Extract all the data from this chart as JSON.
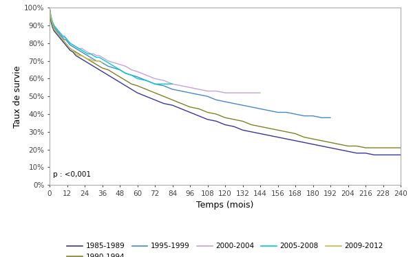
{
  "title": "",
  "xlabel": "Temps (mois)",
  "ylabel": "Taux de survie",
  "xlim": [
    0,
    240
  ],
  "ylim": [
    0,
    1.0
  ],
  "xticks": [
    0,
    12,
    24,
    36,
    48,
    60,
    72,
    84,
    96,
    108,
    120,
    132,
    144,
    156,
    168,
    180,
    192,
    204,
    216,
    228,
    240
  ],
  "yticks": [
    0,
    0.1,
    0.2,
    0.3,
    0.4,
    0.5,
    0.6,
    0.7,
    0.8,
    0.9,
    1.0
  ],
  "ytick_labels": [
    "0%",
    "10%",
    "20%",
    "30%",
    "40%",
    "50%",
    "60%",
    "70%",
    "80%",
    "90%",
    "100%"
  ],
  "pvalue_text": "p : <0,001",
  "series": [
    {
      "label": "1985-1989",
      "color": "#3535a0",
      "x": [
        0,
        1,
        2,
        3,
        4,
        5,
        6,
        7,
        8,
        9,
        10,
        11,
        12,
        14,
        16,
        18,
        20,
        22,
        24,
        26,
        28,
        30,
        32,
        34,
        36,
        40,
        44,
        48,
        52,
        56,
        60,
        66,
        72,
        78,
        84,
        90,
        96,
        102,
        108,
        114,
        120,
        126,
        132,
        138,
        144,
        150,
        156,
        162,
        168,
        174,
        180,
        186,
        192,
        198,
        204,
        210,
        216,
        222,
        228,
        234,
        240
      ],
      "y": [
        1.0,
        0.92,
        0.89,
        0.87,
        0.86,
        0.85,
        0.84,
        0.83,
        0.82,
        0.81,
        0.8,
        0.79,
        0.78,
        0.76,
        0.75,
        0.73,
        0.72,
        0.71,
        0.7,
        0.69,
        0.68,
        0.67,
        0.66,
        0.65,
        0.64,
        0.62,
        0.6,
        0.58,
        0.56,
        0.54,
        0.52,
        0.5,
        0.48,
        0.46,
        0.45,
        0.43,
        0.41,
        0.39,
        0.37,
        0.36,
        0.34,
        0.33,
        0.31,
        0.3,
        0.29,
        0.28,
        0.27,
        0.26,
        0.25,
        0.24,
        0.23,
        0.22,
        0.21,
        0.2,
        0.19,
        0.18,
        0.18,
        0.17,
        0.17,
        0.17,
        0.17
      ]
    },
    {
      "label": "1990-1994",
      "color": "#808020",
      "x": [
        0,
        1,
        2,
        3,
        4,
        5,
        6,
        7,
        8,
        9,
        10,
        11,
        12,
        14,
        16,
        18,
        20,
        22,
        24,
        26,
        28,
        30,
        32,
        34,
        36,
        40,
        44,
        48,
        52,
        56,
        60,
        66,
        72,
        78,
        84,
        90,
        96,
        102,
        108,
        114,
        120,
        126,
        132,
        138,
        144,
        150,
        156,
        162,
        168,
        174,
        180,
        186,
        192,
        198,
        204,
        210,
        216,
        222,
        228,
        234,
        240
      ],
      "y": [
        1.0,
        0.93,
        0.9,
        0.88,
        0.87,
        0.86,
        0.85,
        0.84,
        0.83,
        0.82,
        0.81,
        0.8,
        0.79,
        0.77,
        0.76,
        0.75,
        0.74,
        0.73,
        0.72,
        0.71,
        0.7,
        0.69,
        0.68,
        0.67,
        0.66,
        0.65,
        0.63,
        0.61,
        0.59,
        0.57,
        0.56,
        0.54,
        0.52,
        0.5,
        0.48,
        0.46,
        0.44,
        0.43,
        0.41,
        0.4,
        0.38,
        0.37,
        0.36,
        0.34,
        0.33,
        0.32,
        0.31,
        0.3,
        0.29,
        0.27,
        0.26,
        0.25,
        0.24,
        0.23,
        0.22,
        0.22,
        0.21,
        0.21,
        0.21,
        0.21,
        0.21
      ]
    },
    {
      "label": "1995-1999",
      "color": "#4488cc",
      "x": [
        0,
        1,
        2,
        3,
        4,
        5,
        6,
        7,
        8,
        9,
        10,
        11,
        12,
        14,
        16,
        18,
        20,
        22,
        24,
        26,
        28,
        30,
        32,
        34,
        36,
        40,
        44,
        48,
        52,
        56,
        60,
        66,
        72,
        78,
        84,
        90,
        96,
        102,
        108,
        114,
        120,
        126,
        132,
        138,
        144,
        150,
        156,
        162,
        168,
        174,
        180,
        186,
        192
      ],
      "y": [
        1.0,
        0.94,
        0.91,
        0.89,
        0.88,
        0.87,
        0.86,
        0.85,
        0.84,
        0.83,
        0.82,
        0.82,
        0.81,
        0.79,
        0.78,
        0.77,
        0.76,
        0.75,
        0.74,
        0.73,
        0.72,
        0.71,
        0.7,
        0.7,
        0.69,
        0.67,
        0.66,
        0.65,
        0.63,
        0.62,
        0.61,
        0.59,
        0.57,
        0.56,
        0.54,
        0.53,
        0.52,
        0.51,
        0.5,
        0.48,
        0.47,
        0.46,
        0.45,
        0.44,
        0.43,
        0.42,
        0.41,
        0.41,
        0.4,
        0.39,
        0.39,
        0.38,
        0.38
      ]
    },
    {
      "label": "2000-2004",
      "color": "#c8a0d8",
      "x": [
        0,
        1,
        2,
        3,
        4,
        5,
        6,
        7,
        8,
        9,
        10,
        11,
        12,
        14,
        16,
        18,
        20,
        22,
        24,
        26,
        28,
        30,
        32,
        34,
        36,
        40,
        44,
        48,
        52,
        56,
        60,
        66,
        72,
        78,
        84,
        90,
        96,
        102,
        108,
        114,
        120,
        126,
        132,
        138,
        144
      ],
      "y": [
        1.0,
        0.95,
        0.92,
        0.9,
        0.89,
        0.88,
        0.87,
        0.86,
        0.85,
        0.84,
        0.83,
        0.83,
        0.82,
        0.8,
        0.79,
        0.78,
        0.77,
        0.77,
        0.76,
        0.75,
        0.74,
        0.74,
        0.73,
        0.73,
        0.72,
        0.7,
        0.69,
        0.68,
        0.67,
        0.65,
        0.64,
        0.62,
        0.6,
        0.59,
        0.57,
        0.56,
        0.55,
        0.54,
        0.53,
        0.53,
        0.52,
        0.52,
        0.52,
        0.52,
        0.52
      ]
    },
    {
      "label": "2005-2008",
      "color": "#00cccc",
      "x": [
        0,
        1,
        2,
        3,
        4,
        5,
        6,
        7,
        8,
        9,
        10,
        11,
        12,
        14,
        16,
        18,
        20,
        22,
        24,
        26,
        28,
        30,
        32,
        34,
        36,
        40,
        44,
        48,
        52,
        56,
        60,
        66,
        72,
        78,
        84
      ],
      "y": [
        1.0,
        0.95,
        0.92,
        0.9,
        0.89,
        0.88,
        0.87,
        0.86,
        0.85,
        0.84,
        0.84,
        0.83,
        0.82,
        0.8,
        0.79,
        0.78,
        0.77,
        0.76,
        0.75,
        0.74,
        0.74,
        0.73,
        0.72,
        0.72,
        0.71,
        0.69,
        0.67,
        0.65,
        0.63,
        0.62,
        0.6,
        0.59,
        0.57,
        0.57,
        0.57
      ]
    },
    {
      "label": "2009-2012",
      "color": "#c8b840",
      "x": [
        0,
        1,
        2,
        3,
        4,
        5,
        6,
        7,
        8,
        9,
        10,
        11,
        12,
        14,
        16,
        18,
        20,
        22,
        24,
        26,
        28,
        30,
        32,
        34,
        36
      ],
      "y": [
        1.0,
        0.94,
        0.91,
        0.88,
        0.87,
        0.86,
        0.85,
        0.84,
        0.83,
        0.82,
        0.81,
        0.8,
        0.79,
        0.77,
        0.76,
        0.74,
        0.73,
        0.73,
        0.72,
        0.71,
        0.71,
        0.7,
        0.7,
        0.7,
        0.69
      ]
    }
  ],
  "background_color": "#ffffff",
  "legend_fontsize": 7.5,
  "axis_fontsize": 9,
  "tick_fontsize": 7.5,
  "spine_color": "#aaaaaa"
}
